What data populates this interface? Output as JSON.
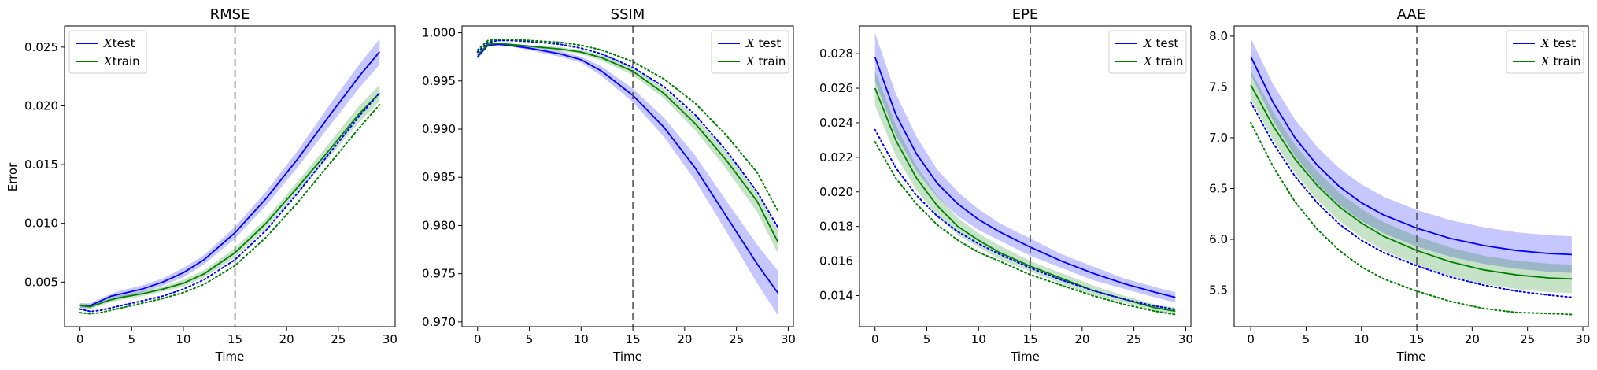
{
  "figure": {
    "y_axis_label": "Error"
  },
  "chart_data": [
    {
      "type": "line",
      "title": "RMSE",
      "xlabel": "Time",
      "ylabel": "Error",
      "xlim": [
        -1.5,
        30.5
      ],
      "ylim": [
        0.0012,
        0.0268
      ],
      "xticks": [
        0,
        5,
        10,
        15,
        20,
        25,
        30
      ],
      "yticks": [
        0.005,
        0.01,
        0.015,
        0.02,
        0.025
      ],
      "ytick_labels": [
        "0.005",
        "0.010",
        "0.015",
        "0.020",
        "0.025"
      ],
      "vline_x": 15,
      "legend": {
        "position": "top-left",
        "entries": [
          "Xtest",
          "Xtrain"
        ],
        "math_letter": "X"
      },
      "series": [
        {
          "name": "Xtest",
          "color": "#0000ff",
          "style": "solid",
          "x": [
            0,
            1,
            2,
            3,
            4,
            6,
            8,
            10,
            12,
            15,
            18,
            21,
            24,
            27,
            29
          ],
          "y": [
            0.003,
            0.003,
            0.0034,
            0.0038,
            0.004,
            0.0044,
            0.005,
            0.0058,
            0.0069,
            0.0092,
            0.0121,
            0.0154,
            0.019,
            0.0225,
            0.0246
          ],
          "band_half_width": [
            0.0002,
            0.0002,
            0.0002,
            0.0002,
            0.0003,
            0.0003,
            0.0003,
            0.0004,
            0.0004,
            0.0005,
            0.0006,
            0.0007,
            0.0009,
            0.001,
            0.0011
          ]
        },
        {
          "name": "Xtrain",
          "color": "#008000",
          "style": "solid",
          "x": [
            0,
            1,
            2,
            3,
            4,
            6,
            8,
            10,
            12,
            15,
            18,
            21,
            24,
            27,
            29
          ],
          "y": [
            0.003,
            0.0029,
            0.0032,
            0.0035,
            0.0037,
            0.004,
            0.0044,
            0.0049,
            0.0057,
            0.0075,
            0.01,
            0.013,
            0.0161,
            0.0193,
            0.0211
          ],
          "band_half_width": [
            0.0002,
            0.0002,
            0.0002,
            0.0002,
            0.0002,
            0.0002,
            0.0002,
            0.0003,
            0.0003,
            0.0004,
            0.0004,
            0.0005,
            0.0006,
            0.0007,
            0.0007
          ]
        },
        {
          "name": "",
          "color": "#0000ff",
          "style": "dotted",
          "x": [
            0,
            1,
            2,
            3,
            4,
            6,
            8,
            10,
            12,
            15,
            18,
            21,
            24,
            27,
            29
          ],
          "y": [
            0.0027,
            0.0025,
            0.0026,
            0.0028,
            0.003,
            0.0034,
            0.0038,
            0.0044,
            0.0052,
            0.0069,
            0.0094,
            0.0125,
            0.0158,
            0.0191,
            0.0211
          ]
        },
        {
          "name": "",
          "color": "#008000",
          "style": "dotted",
          "x": [
            0,
            1,
            2,
            3,
            4,
            6,
            8,
            10,
            12,
            15,
            18,
            21,
            24,
            27,
            29
          ],
          "y": [
            0.0024,
            0.0023,
            0.0024,
            0.0026,
            0.0028,
            0.0032,
            0.0036,
            0.0041,
            0.0048,
            0.0064,
            0.0088,
            0.0117,
            0.0149,
            0.0181,
            0.0201
          ]
        }
      ]
    },
    {
      "type": "line",
      "title": "SSIM",
      "xlabel": "Time",
      "ylabel": "",
      "xlim": [
        -1.5,
        30.5
      ],
      "ylim": [
        0.9695,
        1.0007
      ],
      "xticks": [
        0,
        5,
        10,
        15,
        20,
        25,
        30
      ],
      "yticks": [
        0.97,
        0.975,
        0.98,
        0.985,
        0.99,
        0.995,
        1.0
      ],
      "ytick_labels": [
        "0.970",
        "0.975",
        "0.980",
        "0.985",
        "0.990",
        "0.995",
        "1.000"
      ],
      "vline_x": 15,
      "legend": {
        "position": "top-right",
        "entries": [
          "X test",
          "X train"
        ],
        "math_letter": "X"
      },
      "series": [
        {
          "name": "X test",
          "color": "#0000ff",
          "style": "solid",
          "x": [
            0,
            1,
            2,
            3,
            5,
            8,
            10,
            12,
            15,
            18,
            21,
            24,
            27,
            29
          ],
          "y": [
            0.9975,
            0.9987,
            0.9988,
            0.9987,
            0.9984,
            0.9978,
            0.9972,
            0.996,
            0.9935,
            0.9902,
            0.986,
            0.981,
            0.976,
            0.973
          ],
          "band_half_width": [
            0.0003,
            0.0001,
            0.0001,
            0.0001,
            0.0002,
            0.0003,
            0.0003,
            0.0005,
            0.0007,
            0.001,
            0.0013,
            0.0016,
            0.002,
            0.0023
          ]
        },
        {
          "name": "X train",
          "color": "#008000",
          "style": "solid",
          "x": [
            0,
            1,
            2,
            3,
            5,
            8,
            10,
            12,
            15,
            18,
            21,
            24,
            27,
            29
          ],
          "y": [
            0.9977,
            0.9988,
            0.9989,
            0.9988,
            0.9986,
            0.9983,
            0.998,
            0.9974,
            0.996,
            0.9937,
            0.9906,
            0.9868,
            0.9825,
            0.9783
          ],
          "band_half_width": [
            0.0002,
            0.0001,
            0.0001,
            0.0001,
            0.0001,
            0.0002,
            0.0002,
            0.0003,
            0.0004,
            0.0005,
            0.0007,
            0.0009,
            0.0011,
            0.0012
          ]
        },
        {
          "name": "",
          "color": "#0000ff",
          "style": "dotted",
          "x": [
            0,
            1,
            2,
            3,
            5,
            8,
            10,
            12,
            15,
            18,
            21,
            24,
            27,
            29
          ],
          "y": [
            0.998,
            0.999,
            0.9992,
            0.9992,
            0.9991,
            0.9988,
            0.9984,
            0.9978,
            0.9964,
            0.9944,
            0.9915,
            0.9878,
            0.9835,
            0.9798
          ]
        },
        {
          "name": "",
          "color": "#008000",
          "style": "dotted",
          "x": [
            0,
            1,
            2,
            3,
            5,
            8,
            10,
            12,
            15,
            18,
            21,
            24,
            27,
            29
          ],
          "y": [
            0.9982,
            0.9992,
            0.9993,
            0.9993,
            0.9992,
            0.999,
            0.9987,
            0.9982,
            0.997,
            0.9952,
            0.9927,
            0.9894,
            0.9855,
            0.9815
          ]
        }
      ]
    },
    {
      "type": "line",
      "title": "EPE",
      "xlabel": "Time",
      "ylabel": "",
      "xlim": [
        -1.5,
        30.5
      ],
      "ylim": [
        0.0122,
        0.0296
      ],
      "xticks": [
        0,
        5,
        10,
        15,
        20,
        25,
        30
      ],
      "yticks": [
        0.014,
        0.016,
        0.018,
        0.02,
        0.022,
        0.024,
        0.026,
        0.028
      ],
      "ytick_labels": [
        "0.014",
        "0.016",
        "0.018",
        "0.020",
        "0.022",
        "0.024",
        "0.026",
        "0.028"
      ],
      "vline_x": 15,
      "legend": {
        "position": "top-right",
        "entries": [
          "X test",
          "X train"
        ],
        "math_letter": "X"
      },
      "series": [
        {
          "name": "X test",
          "color": "#0000ff",
          "style": "solid",
          "x": [
            0,
            2,
            4,
            6,
            8,
            10,
            12,
            15,
            18,
            21,
            24,
            27,
            29
          ],
          "y": [
            0.0278,
            0.0245,
            0.0222,
            0.0205,
            0.0193,
            0.0184,
            0.0177,
            0.0168,
            0.016,
            0.0153,
            0.0147,
            0.0142,
            0.0139
          ],
          "band_half_width": [
            0.0014,
            0.0012,
            0.001,
            0.0008,
            0.0007,
            0.0006,
            0.0005,
            0.0005,
            0.0004,
            0.0004,
            0.0003,
            0.0003,
            0.0003
          ]
        },
        {
          "name": "X train",
          "color": "#008000",
          "style": "solid",
          "x": [
            0,
            2,
            4,
            6,
            8,
            10,
            12,
            15,
            18,
            21,
            24,
            27,
            29
          ],
          "y": [
            0.026,
            0.023,
            0.0208,
            0.0192,
            0.018,
            0.0172,
            0.0165,
            0.0157,
            0.015,
            0.0143,
            0.0138,
            0.0133,
            0.0131
          ],
          "band_half_width": [
            0.001,
            0.0009,
            0.0007,
            0.0006,
            0.0005,
            0.0004,
            0.0004,
            0.0003,
            0.0003,
            0.0003,
            0.0002,
            0.0002,
            0.0002
          ]
        },
        {
          "name": "",
          "color": "#0000ff",
          "style": "dotted",
          "x": [
            0,
            2,
            4,
            6,
            8,
            10,
            12,
            15,
            18,
            21,
            24,
            27,
            29
          ],
          "y": [
            0.0236,
            0.0214,
            0.0198,
            0.0186,
            0.0177,
            0.017,
            0.0164,
            0.0156,
            0.0149,
            0.0143,
            0.0138,
            0.0134,
            0.0132
          ]
        },
        {
          "name": "",
          "color": "#008000",
          "style": "dotted",
          "x": [
            0,
            2,
            4,
            6,
            8,
            10,
            12,
            15,
            18,
            21,
            24,
            27,
            29
          ],
          "y": [
            0.0229,
            0.0208,
            0.0193,
            0.0181,
            0.0172,
            0.0165,
            0.016,
            0.0152,
            0.0146,
            0.014,
            0.0135,
            0.0131,
            0.0129
          ]
        }
      ]
    },
    {
      "type": "line",
      "title": "AAE",
      "xlabel": "Time",
      "ylabel": "",
      "xlim": [
        -1.5,
        30.5
      ],
      "ylim": [
        5.14,
        8.1
      ],
      "xticks": [
        0,
        5,
        10,
        15,
        20,
        25,
        30
      ],
      "yticks": [
        5.5,
        6.0,
        6.5,
        7.0,
        7.5,
        8.0
      ],
      "ytick_labels": [
        "5.5",
        "6.0",
        "6.5",
        "7.0",
        "7.5",
        "8.0"
      ],
      "vline_x": 15,
      "legend": {
        "position": "top-right",
        "entries": [
          "X test",
          "X train"
        ],
        "math_letter": "X"
      },
      "series": [
        {
          "name": "X test",
          "color": "#0000ff",
          "style": "solid",
          "x": [
            0,
            2,
            4,
            6,
            8,
            10,
            12,
            15,
            18,
            21,
            24,
            27,
            29
          ],
          "y": [
            7.8,
            7.35,
            7.0,
            6.73,
            6.52,
            6.36,
            6.24,
            6.11,
            6.01,
            5.94,
            5.89,
            5.86,
            5.85
          ],
          "band_half_width": [
            0.18,
            0.18,
            0.18,
            0.18,
            0.18,
            0.18,
            0.18,
            0.18,
            0.18,
            0.18,
            0.18,
            0.18,
            0.18
          ]
        },
        {
          "name": "X train",
          "color": "#008000",
          "style": "solid",
          "x": [
            0,
            2,
            4,
            6,
            8,
            10,
            12,
            15,
            18,
            21,
            24,
            27,
            29
          ],
          "y": [
            7.52,
            7.12,
            6.79,
            6.53,
            6.32,
            6.16,
            6.03,
            5.89,
            5.78,
            5.7,
            5.65,
            5.62,
            5.61
          ],
          "band_half_width": [
            0.14,
            0.14,
            0.14,
            0.14,
            0.14,
            0.14,
            0.14,
            0.14,
            0.14,
            0.14,
            0.14,
            0.14,
            0.14
          ]
        },
        {
          "name": "",
          "color": "#0000ff",
          "style": "dotted",
          "x": [
            0,
            2,
            4,
            6,
            8,
            10,
            12,
            15,
            18,
            21,
            24,
            27,
            29
          ],
          "y": [
            7.35,
            6.95,
            6.62,
            6.36,
            6.15,
            5.99,
            5.87,
            5.74,
            5.63,
            5.55,
            5.49,
            5.45,
            5.43
          ]
        },
        {
          "name": "",
          "color": "#008000",
          "style": "dotted",
          "x": [
            0,
            2,
            4,
            6,
            8,
            10,
            12,
            15,
            18,
            21,
            24,
            27,
            29
          ],
          "y": [
            7.15,
            6.72,
            6.37,
            6.1,
            5.89,
            5.73,
            5.61,
            5.49,
            5.39,
            5.32,
            5.28,
            5.27,
            5.26
          ]
        }
      ]
    }
  ]
}
